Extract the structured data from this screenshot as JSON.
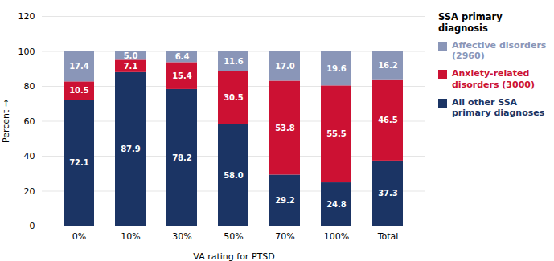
{
  "chart_data": {
    "type": "bar",
    "stacked": true,
    "xlabel": "VA rating for PTSD",
    "ylabel": "Percent",
    "categories": [
      "0%",
      "10%",
      "30%",
      "50%",
      "70%",
      "100%",
      "Total"
    ],
    "series": [
      {
        "name": "All other SSA\nprimary diagnoses",
        "color": "#1b3464",
        "values": [
          72.1,
          87.9,
          78.2,
          58.0,
          29.2,
          24.8,
          37.3
        ],
        "value_labels": [
          "72.1",
          "87.9",
          "78.2",
          "58.0",
          "29.2",
          "24.8",
          "37.3"
        ]
      },
      {
        "name": "Anxiety-related\ndisorders (3000)",
        "color": "#cc1133",
        "values": [
          10.5,
          7.1,
          15.4,
          30.5,
          53.8,
          55.5,
          46.5
        ]
      },
      {
        "name": "Affective disorders\n(2960)",
        "color": "#8a96b8",
        "values": [
          17.4,
          5.0,
          6.4,
          11.6,
          17.0,
          19.6,
          16.2
        ],
        "value_labels": [
          "17.4",
          "5.0",
          "6.4",
          "11.6",
          "17.0",
          "19.6",
          "16.2"
        ]
      }
    ],
    "ylim": [
      0,
      120
    ],
    "yticks": [
      0,
      20,
      40,
      60,
      80,
      100,
      120
    ],
    "grid": true,
    "data_labels": true,
    "legend": "right",
    "legend_title": "SSA primary\ndiagnosis"
  }
}
